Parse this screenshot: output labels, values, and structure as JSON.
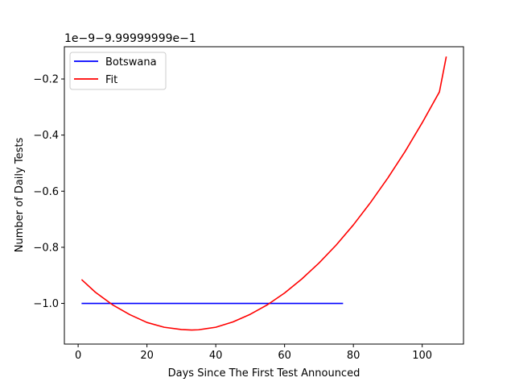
{
  "chart_data": {
    "type": "line",
    "offset_label": "1e−9−9.99999999e−1",
    "xlabel": "Days Since The First Test Announced",
    "ylabel": "Number of Daily Tests",
    "xlim": [
      -4,
      112
    ],
    "ylim": [
      -1.145,
      -0.085
    ],
    "x_ticks": [
      0,
      20,
      40,
      60,
      80,
      100
    ],
    "x_tick_labels": [
      "0",
      "20",
      "40",
      "60",
      "80",
      "100"
    ],
    "y_ticks": [
      -1.0,
      -0.8,
      -0.6,
      -0.4,
      -0.2
    ],
    "y_tick_labels": [
      "−1.0",
      "−0.8",
      "−0.6",
      "−0.4",
      "−0.2"
    ],
    "grid": false,
    "legend_position": "upper left",
    "series": [
      {
        "name": "Botswana",
        "color": "#0000ff",
        "points": [
          [
            1,
            -1.0
          ],
          [
            77,
            -1.0
          ]
        ]
      },
      {
        "name": "Fit",
        "color": "#ff0000",
        "points": [
          [
            1,
            -0.915
          ],
          [
            5,
            -0.96
          ],
          [
            10,
            -1.005
          ],
          [
            15,
            -1.04
          ],
          [
            20,
            -1.068
          ],
          [
            25,
            -1.085
          ],
          [
            30,
            -1.093
          ],
          [
            33,
            -1.095
          ],
          [
            35,
            -1.094
          ],
          [
            40,
            -1.085
          ],
          [
            45,
            -1.066
          ],
          [
            50,
            -1.039
          ],
          [
            55,
            -1.005
          ],
          [
            60,
            -0.963
          ],
          [
            65,
            -0.913
          ],
          [
            70,
            -0.856
          ],
          [
            75,
            -0.792
          ],
          [
            80,
            -0.72
          ],
          [
            85,
            -0.64
          ],
          [
            90,
            -0.553
          ],
          [
            95,
            -0.459
          ],
          [
            100,
            -0.356
          ],
          [
            105,
            -0.246
          ],
          [
            107,
            -0.12
          ]
        ]
      }
    ]
  }
}
